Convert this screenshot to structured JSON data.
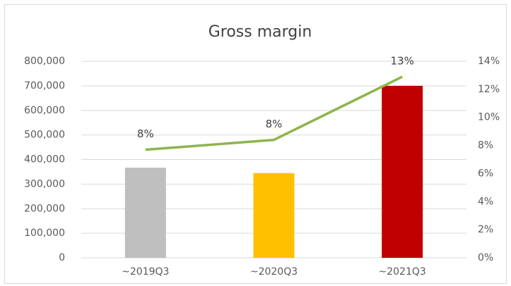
{
  "chart_data": {
    "type": "bar_line",
    "title": "Gross margin",
    "categories": [
      "~2019Q3",
      "~2020Q3",
      "~2021Q3"
    ],
    "series": [
      {
        "type": "bar",
        "colors": [
          "#bfbfbf",
          "#ffc000",
          "#c00000"
        ],
        "values": [
          367000,
          345000,
          700000
        ]
      },
      {
        "type": "line",
        "color": "#8db54b",
        "axis": "y2",
        "values": [
          7.7,
          8.4,
          12.9
        ],
        "value_labels": [
          "8%",
          "8%",
          "13%"
        ]
      }
    ],
    "ylim": [
      0,
      800000
    ],
    "yticks": [
      0,
      {
        "value": 100000,
        "label": "100,000"
      },
      {
        "value": 200000,
        "label": "200,000"
      },
      {
        "value": 300000,
        "label": "300,000"
      },
      {
        "value": 400000,
        "label": "400,000"
      },
      {
        "value": 500000,
        "label": "500,000"
      },
      {
        "value": 600000,
        "label": "600,000"
      },
      {
        "value": 700000,
        "label": "700,000"
      },
      {
        "value": 800000,
        "label": "800,000"
      }
    ],
    "y2lim": [
      0,
      14
    ],
    "y2ticks": [
      {
        "value": 0,
        "label": "0%"
      },
      {
        "value": 2,
        "label": "2%"
      },
      {
        "value": 4,
        "label": "4%"
      },
      {
        "value": 6,
        "label": "6%"
      },
      {
        "value": 8,
        "label": "8%"
      },
      {
        "value": 10,
        "label": "10%"
      },
      {
        "value": 12,
        "label": "12%"
      },
      {
        "value": 14,
        "label": "14%"
      }
    ],
    "grid": true
  }
}
